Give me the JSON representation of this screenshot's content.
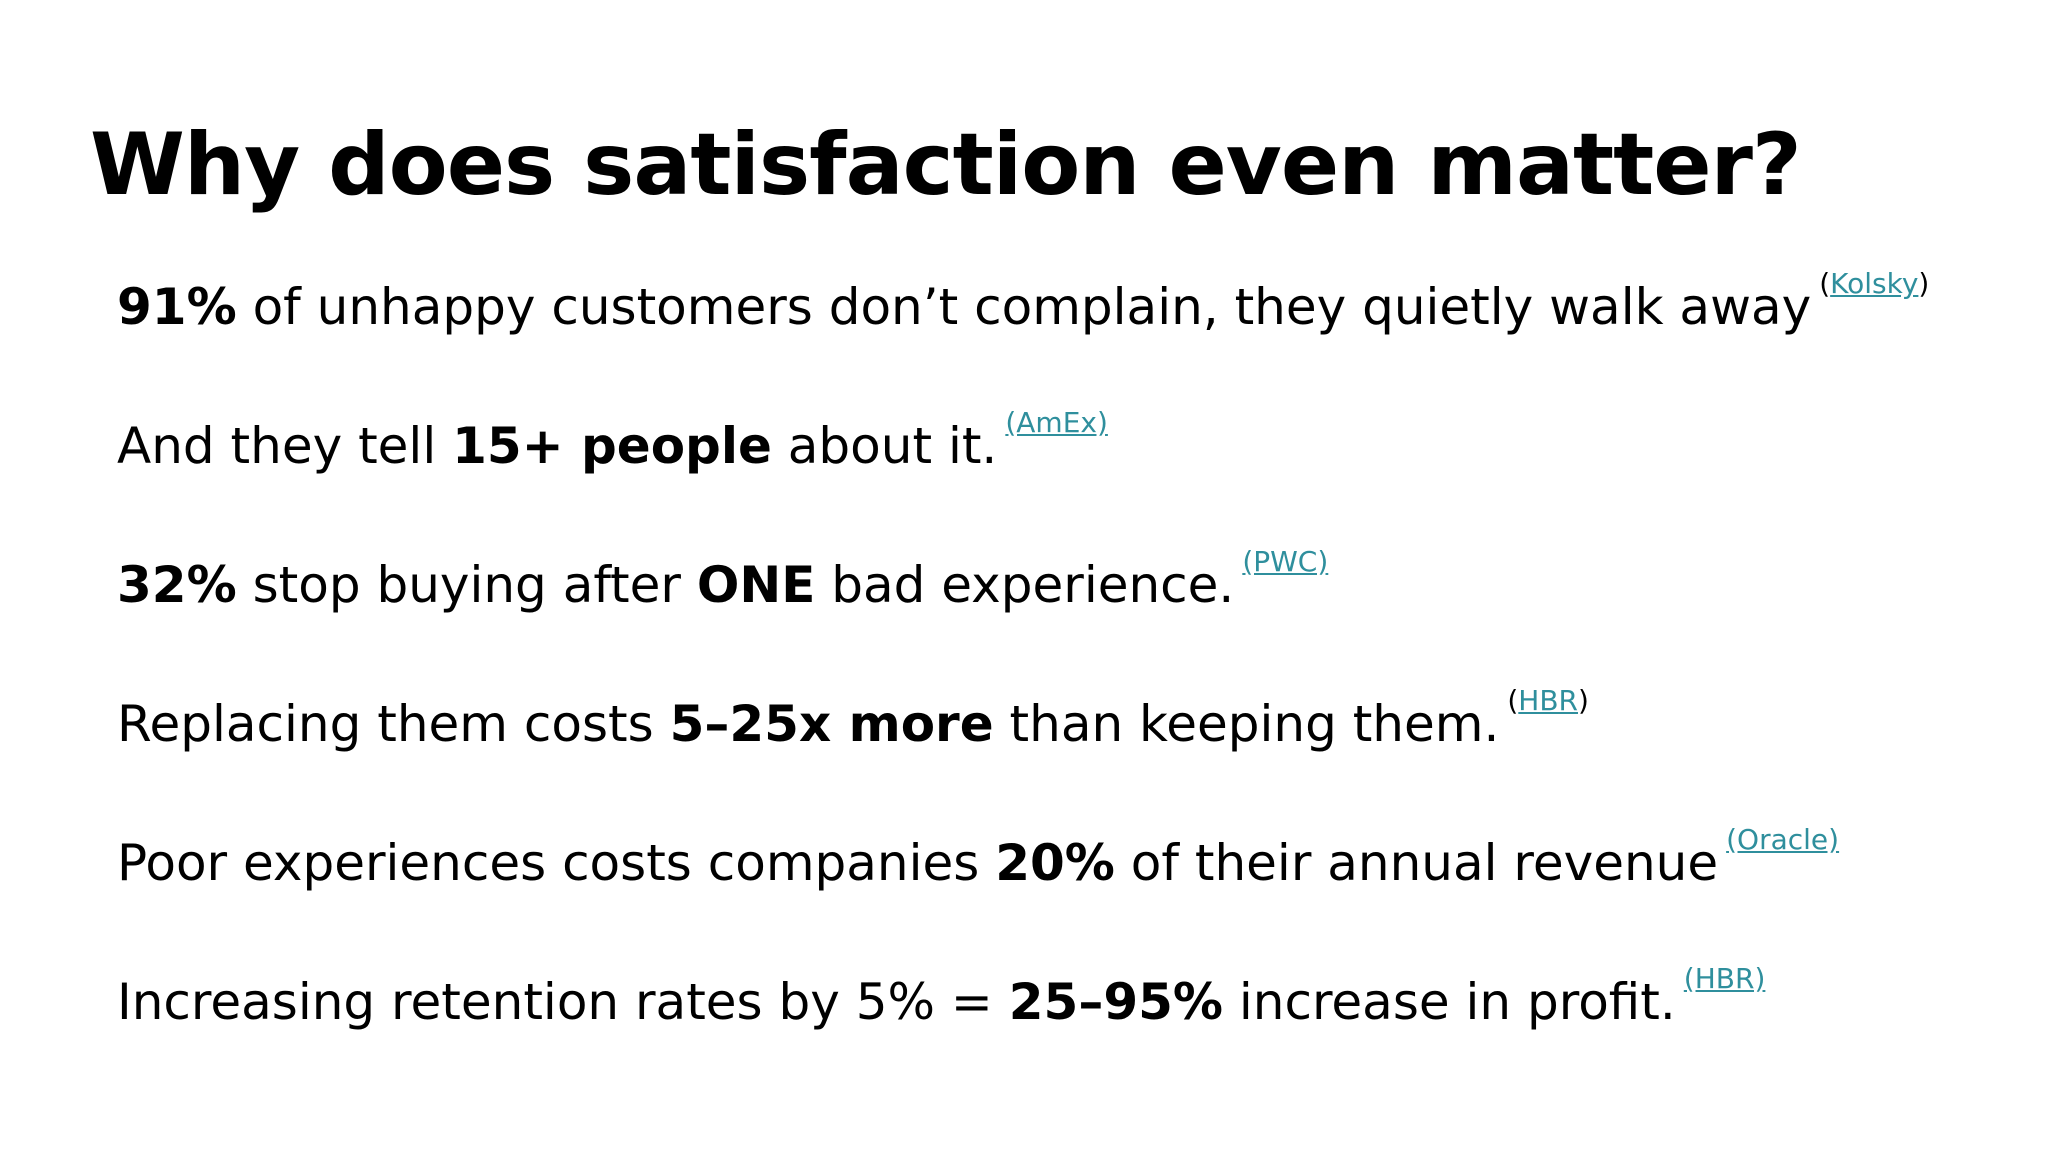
{
  "title": "Why does satisfaction even matter?",
  "link_color": "#2f8f9d",
  "stats": [
    {
      "bold1": "91%",
      "text1": " of unhappy customers don’t complain, they quietly walk away",
      "cite_open": "(",
      "cite": "Kolsky",
      "cite_close": ")"
    },
    {
      "text0": "And they tell ",
      "bold1": "15+ people",
      "text1": " about it.",
      "cite": "(AmEx)"
    },
    {
      "bold1": "32%",
      "text1": " stop buying after ",
      "bold2": "ONE",
      "text2": " bad experience.",
      "cite": "(PWC)"
    },
    {
      "text0": "Replacing them costs ",
      "bold1": "5–25x more",
      "text1": " than keeping them.",
      "cite_open": "(",
      "cite": "HBR",
      "cite_close": ")"
    },
    {
      "text0": "Poor experiences costs companies ",
      "bold1": "20%",
      "text1": " of their annual revenue",
      "cite": "(Oracle)"
    },
    {
      "text0": "Increasing retention rates by 5% = ",
      "bold1": "25–95%",
      "text1": " increase in profit.",
      "cite": "(HBR)"
    }
  ]
}
